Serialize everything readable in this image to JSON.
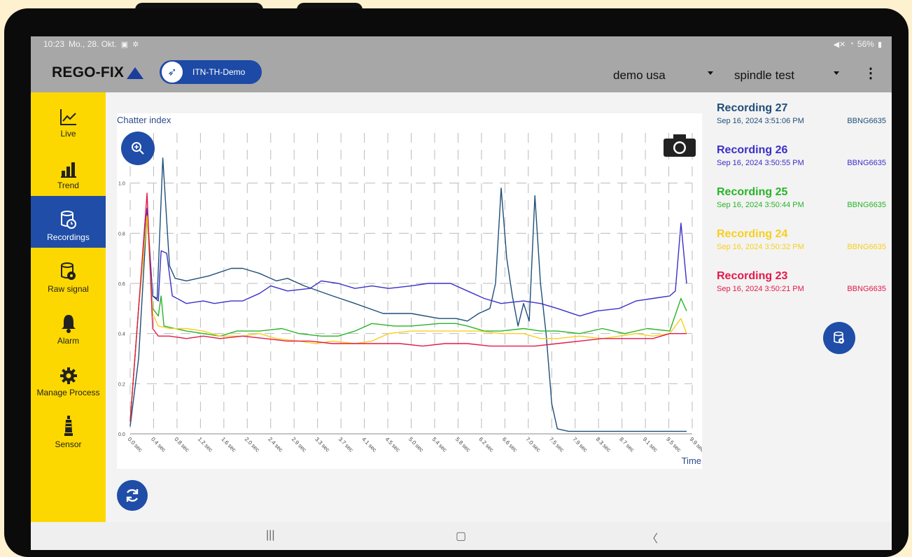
{
  "status_bar": {
    "time": "10:23",
    "date": "Mo., 28. Okt.",
    "battery": "56%"
  },
  "app_bar": {
    "logo": "REGO-FIX",
    "machine": "ITN-TH-Demo",
    "dropdown1": "demo usa",
    "dropdown2": "spindle test"
  },
  "sidebar": {
    "items": [
      {
        "label": "Live",
        "icon": "chart-line-icon"
      },
      {
        "label": "Trend",
        "icon": "bar-chart-icon"
      },
      {
        "label": "Recordings",
        "icon": "database-clock-icon",
        "active": true
      },
      {
        "label": "Raw signal",
        "icon": "database-cog-icon"
      },
      {
        "label": "Alarm",
        "icon": "bell-icon"
      },
      {
        "label": "Manage Process",
        "icon": "gear-icon"
      },
      {
        "label": "Sensor",
        "icon": "sensor-icon"
      }
    ]
  },
  "recordings": [
    {
      "title": "Recording 27",
      "date": "Sep 16, 2024 3:51:06 PM",
      "code": "BBNG6635",
      "color": "#1f4e79"
    },
    {
      "title": "Recording 26",
      "date": "Sep 16, 2024 3:50:55 PM",
      "code": "BBNG6635",
      "color": "#3a2fc9"
    },
    {
      "title": "Recording 25",
      "date": "Sep 16, 2024 3:50:44 PM",
      "code": "BBNG6635",
      "color": "#28b428"
    },
    {
      "title": "Recording 24",
      "date": "Sep 16, 2024 3:50:32 PM",
      "code": "BBNG6635",
      "color": "#f7cf1e"
    },
    {
      "title": "Recording 23",
      "date": "Sep 16, 2024 3:50:21 PM",
      "code": "BBNG6635",
      "color": "#e3194a"
    }
  ],
  "chart_data": {
    "type": "line",
    "title": "Chatter index",
    "xlabel": "Time",
    "ylabel": "",
    "ylim": [
      0,
      1.2
    ],
    "xlim": [
      0,
      10
    ],
    "y_ticks": [
      "0.0",
      "0.2",
      "0.4",
      "0.6",
      "0.8",
      "1.0"
    ],
    "x_ticks": [
      "0.0 sec",
      "0.4 sec",
      "0.8 sec",
      "1.2 sec",
      "1.6 sec",
      "2.0 sec",
      "2.4 sec",
      "2.9 sec",
      "3.3 sec",
      "3.7 sec",
      "4.1 sec",
      "4.5 sec",
      "5.0 sec",
      "5.4 sec",
      "5.8 sec",
      "6.2 sec",
      "6.6 sec",
      "7.0 sec",
      "7.5 sec",
      "7.9 sec",
      "8.3 sec",
      "8.7 sec",
      "9.1 sec",
      "9.5 sec",
      "9.9 sec"
    ],
    "grid": true,
    "series": [
      {
        "name": "Recording 27",
        "color": "#1f4e79",
        "points": [
          [
            0,
            0.03
          ],
          [
            0.15,
            0.3
          ],
          [
            0.3,
            0.88
          ],
          [
            0.4,
            0.55
          ],
          [
            0.48,
            0.54
          ],
          [
            0.58,
            1.1
          ],
          [
            0.7,
            0.67
          ],
          [
            0.8,
            0.62
          ],
          [
            1.0,
            0.61
          ],
          [
            1.4,
            0.63
          ],
          [
            1.8,
            0.66
          ],
          [
            2.0,
            0.66
          ],
          [
            2.3,
            0.64
          ],
          [
            2.6,
            0.61
          ],
          [
            2.8,
            0.62
          ],
          [
            3.1,
            0.59
          ],
          [
            3.6,
            0.55
          ],
          [
            4.0,
            0.52
          ],
          [
            4.5,
            0.48
          ],
          [
            5.0,
            0.48
          ],
          [
            5.5,
            0.46
          ],
          [
            5.8,
            0.46
          ],
          [
            6.0,
            0.45
          ],
          [
            6.2,
            0.48
          ],
          [
            6.4,
            0.5
          ],
          [
            6.5,
            0.6
          ],
          [
            6.6,
            0.98
          ],
          [
            6.7,
            0.7
          ],
          [
            6.8,
            0.55
          ],
          [
            6.9,
            0.43
          ],
          [
            7.0,
            0.52
          ],
          [
            7.1,
            0.45
          ],
          [
            7.2,
            0.95
          ],
          [
            7.3,
            0.6
          ],
          [
            7.4,
            0.4
          ],
          [
            7.5,
            0.12
          ],
          [
            7.6,
            0.02
          ],
          [
            7.8,
            0.01
          ],
          [
            8.5,
            0.01
          ],
          [
            9.0,
            0.01
          ],
          [
            9.9,
            0.01
          ]
        ]
      },
      {
        "name": "Recording 26",
        "color": "#3a2fc9",
        "points": [
          [
            0,
            0.05
          ],
          [
            0.15,
            0.5
          ],
          [
            0.3,
            0.9
          ],
          [
            0.4,
            0.55
          ],
          [
            0.5,
            0.53
          ],
          [
            0.55,
            0.73
          ],
          [
            0.65,
            0.72
          ],
          [
            0.75,
            0.55
          ],
          [
            1.0,
            0.52
          ],
          [
            1.3,
            0.53
          ],
          [
            1.5,
            0.52
          ],
          [
            1.8,
            0.53
          ],
          [
            2.0,
            0.53
          ],
          [
            2.3,
            0.56
          ],
          [
            2.5,
            0.59
          ],
          [
            2.8,
            0.57
          ],
          [
            3.2,
            0.58
          ],
          [
            3.4,
            0.61
          ],
          [
            3.7,
            0.6
          ],
          [
            4.0,
            0.58
          ],
          [
            4.3,
            0.59
          ],
          [
            4.6,
            0.58
          ],
          [
            5.0,
            0.59
          ],
          [
            5.3,
            0.6
          ],
          [
            5.7,
            0.6
          ],
          [
            6.0,
            0.57
          ],
          [
            6.3,
            0.54
          ],
          [
            6.6,
            0.52
          ],
          [
            7.0,
            0.53
          ],
          [
            7.3,
            0.52
          ],
          [
            7.6,
            0.5
          ],
          [
            8.0,
            0.47
          ],
          [
            8.3,
            0.49
          ],
          [
            8.7,
            0.5
          ],
          [
            9.0,
            0.53
          ],
          [
            9.3,
            0.54
          ],
          [
            9.6,
            0.55
          ],
          [
            9.7,
            0.57
          ],
          [
            9.8,
            0.84
          ],
          [
            9.9,
            0.6
          ]
        ]
      },
      {
        "name": "Recording 25",
        "color": "#28b428",
        "points": [
          [
            0,
            0.05
          ],
          [
            0.15,
            0.5
          ],
          [
            0.3,
            0.86
          ],
          [
            0.4,
            0.5
          ],
          [
            0.5,
            0.47
          ],
          [
            0.55,
            0.55
          ],
          [
            0.6,
            0.43
          ],
          [
            0.8,
            0.42
          ],
          [
            1.0,
            0.41
          ],
          [
            1.3,
            0.4
          ],
          [
            1.6,
            0.39
          ],
          [
            1.9,
            0.41
          ],
          [
            2.3,
            0.41
          ],
          [
            2.7,
            0.42
          ],
          [
            3.0,
            0.4
          ],
          [
            3.4,
            0.39
          ],
          [
            3.7,
            0.39
          ],
          [
            4.0,
            0.41
          ],
          [
            4.3,
            0.44
          ],
          [
            4.7,
            0.43
          ],
          [
            5.0,
            0.43
          ],
          [
            5.5,
            0.44
          ],
          [
            5.8,
            0.44
          ],
          [
            6.0,
            0.43
          ],
          [
            6.3,
            0.41
          ],
          [
            6.6,
            0.41
          ],
          [
            7.0,
            0.42
          ],
          [
            7.3,
            0.41
          ],
          [
            7.6,
            0.41
          ],
          [
            8.0,
            0.4
          ],
          [
            8.4,
            0.42
          ],
          [
            8.8,
            0.4
          ],
          [
            9.2,
            0.42
          ],
          [
            9.6,
            0.41
          ],
          [
            9.8,
            0.54
          ],
          [
            9.9,
            0.49
          ]
        ]
      },
      {
        "name": "Recording 24",
        "color": "#f7cf1e",
        "points": [
          [
            0,
            0.05
          ],
          [
            0.15,
            0.5
          ],
          [
            0.3,
            0.87
          ],
          [
            0.4,
            0.48
          ],
          [
            0.5,
            0.43
          ],
          [
            0.7,
            0.42
          ],
          [
            1.0,
            0.42
          ],
          [
            1.3,
            0.41
          ],
          [
            1.6,
            0.39
          ],
          [
            2.0,
            0.39
          ],
          [
            2.3,
            0.4
          ],
          [
            2.6,
            0.38
          ],
          [
            3.0,
            0.37
          ],
          [
            3.3,
            0.36
          ],
          [
            3.6,
            0.37
          ],
          [
            4.0,
            0.36
          ],
          [
            4.3,
            0.37
          ],
          [
            4.6,
            0.4
          ],
          [
            5.0,
            0.41
          ],
          [
            5.4,
            0.41
          ],
          [
            5.8,
            0.41
          ],
          [
            6.2,
            0.41
          ],
          [
            6.6,
            0.4
          ],
          [
            7.0,
            0.4
          ],
          [
            7.3,
            0.38
          ],
          [
            7.6,
            0.38
          ],
          [
            8.0,
            0.39
          ],
          [
            8.4,
            0.38
          ],
          [
            8.7,
            0.39
          ],
          [
            9.0,
            0.4
          ],
          [
            9.3,
            0.39
          ],
          [
            9.6,
            0.4
          ],
          [
            9.8,
            0.46
          ],
          [
            9.9,
            0.4
          ]
        ]
      },
      {
        "name": "Recording 23",
        "color": "#e3194a",
        "points": [
          [
            0,
            0.05
          ],
          [
            0.15,
            0.5
          ],
          [
            0.3,
            0.96
          ],
          [
            0.4,
            0.42
          ],
          [
            0.5,
            0.39
          ],
          [
            0.7,
            0.39
          ],
          [
            1.0,
            0.38
          ],
          [
            1.3,
            0.39
          ],
          [
            1.6,
            0.38
          ],
          [
            2.0,
            0.39
          ],
          [
            2.4,
            0.38
          ],
          [
            2.8,
            0.37
          ],
          [
            3.2,
            0.37
          ],
          [
            3.6,
            0.36
          ],
          [
            4.0,
            0.36
          ],
          [
            4.4,
            0.36
          ],
          [
            4.8,
            0.36
          ],
          [
            5.2,
            0.35
          ],
          [
            5.6,
            0.36
          ],
          [
            6.0,
            0.36
          ],
          [
            6.4,
            0.35
          ],
          [
            6.8,
            0.35
          ],
          [
            7.2,
            0.35
          ],
          [
            7.6,
            0.36
          ],
          [
            8.0,
            0.37
          ],
          [
            8.4,
            0.38
          ],
          [
            8.7,
            0.38
          ],
          [
            9.0,
            0.38
          ],
          [
            9.3,
            0.38
          ],
          [
            9.6,
            0.4
          ],
          [
            9.9,
            0.4
          ]
        ]
      }
    ]
  }
}
